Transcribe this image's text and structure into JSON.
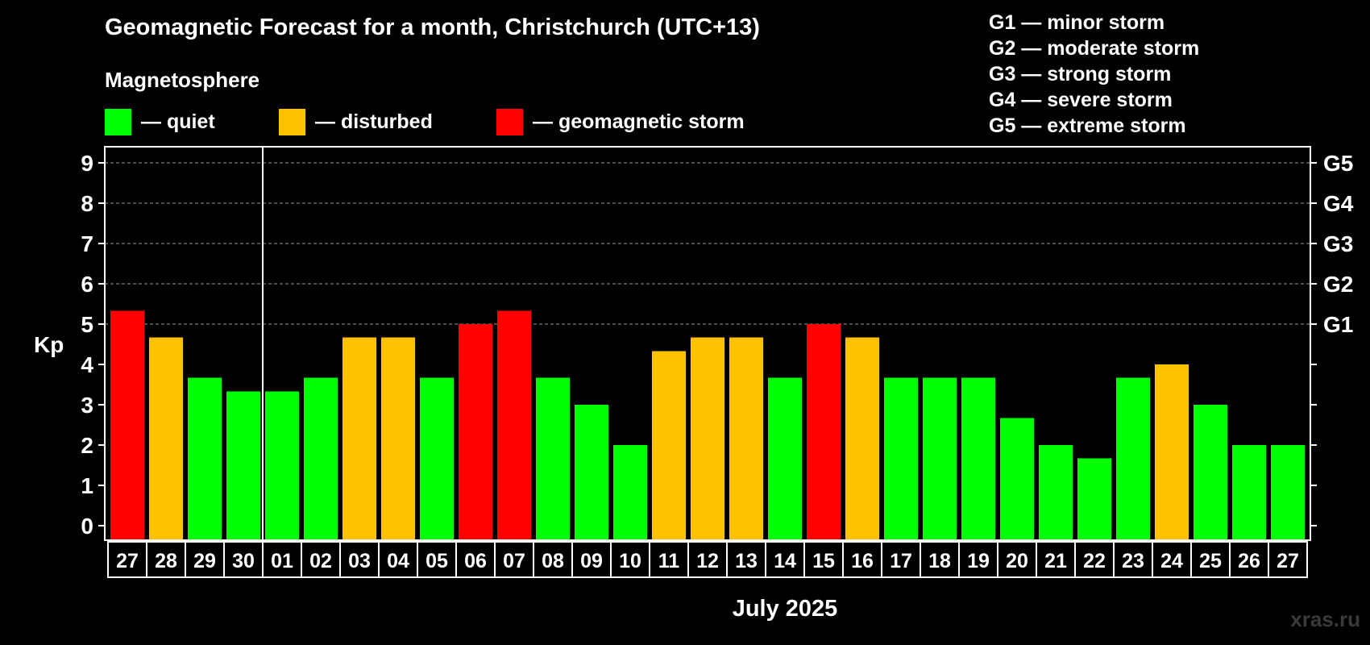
{
  "header": {
    "title": "Geomagnetic Forecast for a month, Christchurch (UTC+13)",
    "subtitle": "Magnetosphere"
  },
  "legend": [
    {
      "label": "— quiet",
      "color": "#00ff00"
    },
    {
      "label": "— disturbed",
      "color": "#ffc000"
    },
    {
      "label": "— geomagnetic storm",
      "color": "#ff0000"
    }
  ],
  "storm_scale": [
    "G1 — minor storm",
    "G2 — moderate storm",
    "G3 — strong storm",
    "G4 — severe storm",
    "G5 — extreme storm"
  ],
  "watermark": "xras.ru",
  "chart_data": {
    "type": "bar",
    "title": "Geomagnetic Forecast for a month, Christchurch (UTC+13)",
    "ylabel": "Kp",
    "xlabel": "July 2025",
    "ylim": [
      0,
      9
    ],
    "yticks": [
      "0",
      "1",
      "2",
      "3",
      "4",
      "5",
      "6",
      "7",
      "8",
      "9"
    ],
    "right_ticks": [
      {
        "value": 5,
        "label": "G1"
      },
      {
        "value": 6,
        "label": "G2"
      },
      {
        "value": 7,
        "label": "G3"
      },
      {
        "value": 8,
        "label": "G4"
      },
      {
        "value": 9,
        "label": "G5"
      }
    ],
    "month_divider_after_index": 3,
    "categories": [
      "27",
      "28",
      "29",
      "30",
      "01",
      "02",
      "03",
      "04",
      "05",
      "06",
      "07",
      "08",
      "09",
      "10",
      "11",
      "12",
      "13",
      "14",
      "15",
      "16",
      "17",
      "18",
      "19",
      "20",
      "21",
      "22",
      "23",
      "24",
      "25",
      "26",
      "27"
    ],
    "values": [
      5.33,
      4.67,
      3.67,
      3.33,
      3.33,
      3.67,
      4.67,
      4.67,
      3.67,
      5.0,
      5.33,
      3.67,
      3.0,
      2.0,
      4.33,
      4.67,
      4.67,
      3.67,
      5.0,
      4.67,
      3.67,
      3.67,
      3.67,
      2.67,
      2.0,
      1.67,
      3.67,
      4.0,
      3.0,
      2.0,
      2.0
    ],
    "levels": [
      "storm",
      "disturbed",
      "quiet",
      "quiet",
      "quiet",
      "quiet",
      "disturbed",
      "disturbed",
      "quiet",
      "storm",
      "storm",
      "quiet",
      "quiet",
      "quiet",
      "disturbed",
      "disturbed",
      "disturbed",
      "quiet",
      "storm",
      "disturbed",
      "quiet",
      "quiet",
      "quiet",
      "quiet",
      "quiet",
      "quiet",
      "quiet",
      "disturbed",
      "quiet",
      "quiet",
      "quiet"
    ],
    "level_colors": {
      "quiet": "#00ff00",
      "disturbed": "#ffc000",
      "storm": "#ff0000"
    },
    "gridlines": true
  }
}
